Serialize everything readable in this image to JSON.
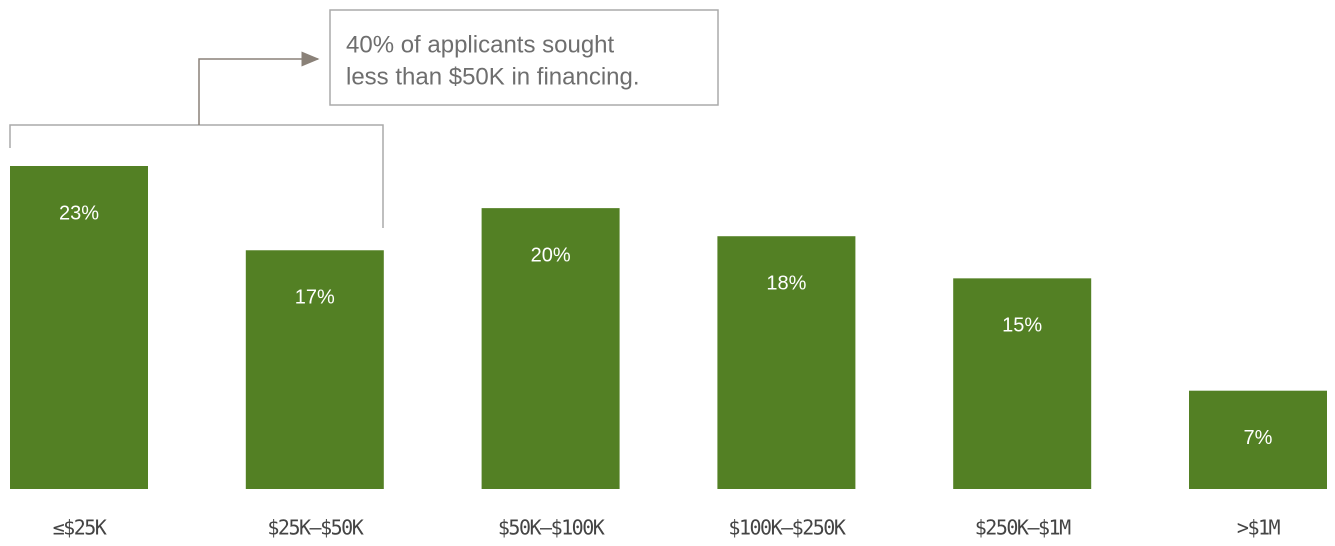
{
  "chart_data": {
    "type": "bar",
    "categories": [
      "≤$25K",
      "$25K–$50K",
      "$50K–$100K",
      "$100K–$250K",
      "$250K–$1M",
      ">$1M"
    ],
    "values": [
      23,
      17,
      20,
      18,
      15,
      7
    ],
    "value_labels": [
      "23%",
      "17%",
      "20%",
      "18%",
      "15%",
      "7%"
    ],
    "color": "#538024",
    "annotation": [
      "40% of applicants sought",
      "less than $50K in financing."
    ]
  }
}
